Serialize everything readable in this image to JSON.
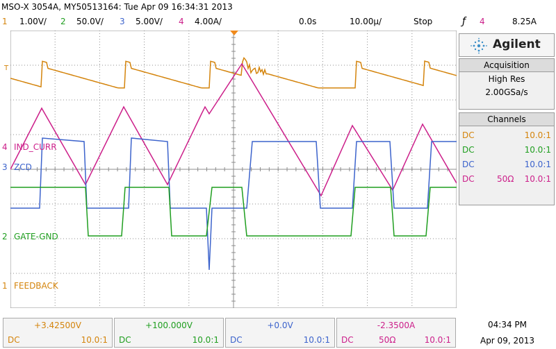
{
  "title_bar": "MSO-X 3054A, MY50513164: Tue Apr 09 16:34:31 2013",
  "status": {
    "ch1": {
      "num": "1",
      "scale": "1.00V/"
    },
    "ch2": {
      "num": "2",
      "scale": "50.0V/"
    },
    "ch3": {
      "num": "3",
      "scale": "5.00V/"
    },
    "ch4": {
      "num": "4",
      "scale": "4.00A/"
    },
    "time_delay": "0.0s",
    "time_scale": "10.00µ/",
    "run_state": "Stop",
    "trigger_icon": "ƒ",
    "trigger_channel": "4",
    "trigger_level": "8.25A"
  },
  "brand": "Agilent",
  "acquisition": {
    "header": "Acquisition",
    "mode": "High Res",
    "rate": "2.00GSa/s"
  },
  "channels_panel": {
    "header": "Channels",
    "rows": [
      {
        "coupling": "DC",
        "impedance": "",
        "ratio": "10.0:1"
      },
      {
        "coupling": "DC",
        "impedance": "",
        "ratio": "10.0:1"
      },
      {
        "coupling": "DC",
        "impedance": "",
        "ratio": "10.0:1"
      },
      {
        "coupling": "DC",
        "impedance": "50Ω",
        "ratio": "10.0:1"
      }
    ]
  },
  "trace_labels": {
    "ind_curr": "IND_CURR",
    "zcd": "ZCD",
    "gate": "GATE-GND",
    "feedback": "FEEDBACK",
    "marker4": "4",
    "marker3": "3",
    "marker2": "2",
    "marker1": "1",
    "trig_marker": "T"
  },
  "offsets": [
    {
      "value": "+3.42500V",
      "coupling": "DC",
      "impedance": "",
      "ratio": "10.0:1"
    },
    {
      "value": "+100.000V",
      "coupling": "DC",
      "impedance": "",
      "ratio": "10.0:1"
    },
    {
      "value": "+0.0V",
      "coupling": "DC",
      "impedance": "",
      "ratio": "10.0:1"
    },
    {
      "value": "-2.3500A",
      "coupling": "DC",
      "impedance": "50Ω",
      "ratio": "10.0:1"
    }
  ],
  "clock": {
    "time": "04:34 PM",
    "date": "Apr 09, 2013"
  },
  "colors": {
    "ch1": "#d4840c",
    "ch2": "#1f9e1f",
    "ch3": "#3c63cc",
    "ch4": "#cc1f8a",
    "grid": "#8c8c8c"
  }
}
